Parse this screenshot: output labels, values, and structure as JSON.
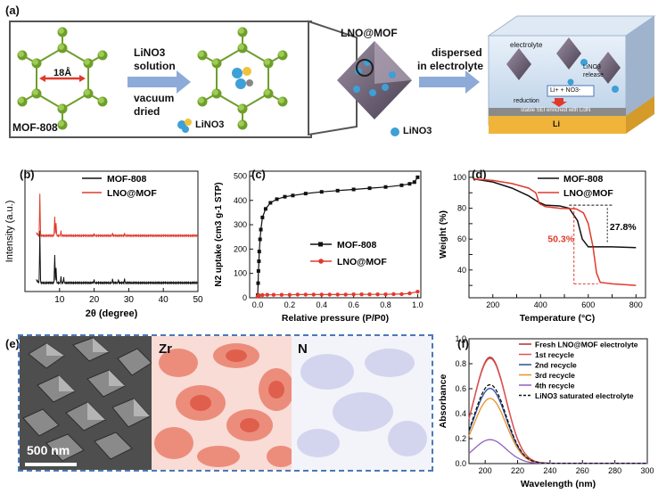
{
  "panel_a": {
    "label": "(a)",
    "mof_label": "MOF-808",
    "pore_size": "18Å",
    "step1_line1": "LiNO3",
    "step1_line2": "solution",
    "step2_line1": "vacuum",
    "step2_line2": "dried",
    "lino3_legend": "LiNO3",
    "lno_mof_title": "LNO@MOF",
    "lino3_legend2": "LiNO3",
    "dispersed_line1": "dispersed",
    "dispersed_line2": "in electrolyte",
    "battery": {
      "electrolyte": "electrolyte",
      "release_line1": "LiNO3",
      "release_line2": "release",
      "ions": "Li+ + NO3-",
      "reduction": "reduction",
      "sei": "stable SEI enriched with Li3N",
      "li": "Li"
    },
    "colors": {
      "mof": "#6f9e2c",
      "arrow": "#8eaad8",
      "li_bar": "#f0b43a",
      "blue_ball": "#3da0d6"
    }
  },
  "panel_b": {
    "label": "(b)",
    "chart_data": {
      "type": "line",
      "xlabel": "2θ (degree)",
      "ylabel": "Intensity (a.u.)",
      "xlim": [
        0,
        50
      ],
      "xticks": [
        10,
        20,
        30,
        40,
        50
      ],
      "series": [
        {
          "name": "MOF-808",
          "color": "#111111",
          "peaks": [
            [
              4.3,
              1.0
            ],
            [
              8.6,
              0.55
            ],
            [
              9.0,
              0.28
            ],
            [
              10.4,
              0.12
            ],
            [
              11.2,
              0.1
            ],
            [
              20.0,
              0.06
            ],
            [
              25.3,
              0.07
            ],
            [
              27.0,
              0.06
            ],
            [
              28.8,
              0.08
            ]
          ]
        },
        {
          "name": "LNO@MOF",
          "color": "#e03a2c",
          "peaks": [
            [
              4.3,
              0.85
            ],
            [
              8.6,
              0.4
            ],
            [
              9.0,
              0.25
            ],
            [
              10.4,
              0.1
            ],
            [
              20.0,
              0.04
            ],
            [
              25.3,
              0.05
            ],
            [
              28.8,
              0.05
            ]
          ]
        }
      ]
    }
  },
  "panel_c": {
    "label": "(c)",
    "chart_data": {
      "type": "scatter",
      "xlabel": "Relative pressure (P/P0)",
      "ylabel": "N2 uptake (cm3 g-1 STP)",
      "xlim": [
        -0.05,
        1.02
      ],
      "ylim": [
        0,
        520
      ],
      "xticks": [
        0.0,
        0.2,
        0.4,
        0.6,
        0.8,
        1.0
      ],
      "yticks": [
        0,
        100,
        200,
        300,
        400,
        500
      ],
      "series": [
        {
          "name": "MOF-808",
          "color": "#111111",
          "x": [
            0.0,
            0.003,
            0.005,
            0.008,
            0.01,
            0.015,
            0.02,
            0.03,
            0.05,
            0.08,
            0.12,
            0.17,
            0.22,
            0.3,
            0.4,
            0.5,
            0.6,
            0.7,
            0.8,
            0.9,
            0.95,
            0.98,
            1.0
          ],
          "y": [
            10,
            60,
            110,
            150,
            190,
            240,
            280,
            330,
            365,
            390,
            405,
            415,
            420,
            428,
            435,
            440,
            445,
            450,
            455,
            462,
            468,
            475,
            495
          ]
        },
        {
          "name": "LNO@MOF",
          "color": "#e03a2c",
          "x": [
            0.0,
            0.003,
            0.01,
            0.03,
            0.06,
            0.1,
            0.15,
            0.2,
            0.25,
            0.3,
            0.35,
            0.4,
            0.45,
            0.5,
            0.55,
            0.6,
            0.65,
            0.7,
            0.75,
            0.8,
            0.85,
            0.9,
            0.95,
            1.0
          ],
          "y": [
            5,
            8,
            10,
            11,
            12,
            12,
            12,
            12,
            13,
            13,
            13,
            13,
            13,
            13,
            13,
            14,
            14,
            14,
            14,
            14,
            15,
            15,
            18,
            25
          ]
        }
      ]
    }
  },
  "panel_d": {
    "label": "(d)",
    "annot_mof": "27.8%",
    "annot_lno": "50.3%",
    "chart_data": {
      "type": "line",
      "xlabel": "Temperature (°C)",
      "ylabel": "Weight (%)",
      "xlim": [
        100,
        840
      ],
      "ylim": [
        22,
        104
      ],
      "xticks": [
        200,
        300,
        400,
        500,
        600,
        700,
        800
      ],
      "yticks": [
        30,
        40,
        50,
        60,
        70,
        80,
        90,
        100
      ],
      "series": [
        {
          "name": "MOF-808",
          "color": "#111111",
          "x": [
            120,
            200,
            280,
            350,
            390,
            420,
            480,
            520,
            555,
            575,
            600,
            620,
            700,
            800
          ],
          "y": [
            99,
            97,
            93,
            88,
            84,
            82,
            81.5,
            80,
            72,
            60,
            55,
            55,
            55,
            54.5
          ]
        },
        {
          "name": "LNO@MOF",
          "color": "#e03a2c",
          "x": [
            120,
            200,
            280,
            350,
            380,
            395,
            420,
            480,
            550,
            580,
            600,
            620,
            635,
            650,
            700,
            800
          ],
          "y": [
            99,
            98,
            96,
            93,
            90,
            83,
            81,
            80,
            79.5,
            77,
            70,
            55,
            38,
            32,
            31,
            30
          ]
        }
      ]
    }
  },
  "panel_e": {
    "label": "(e)",
    "scale_bar": "500 nm",
    "map_zr": "Zr",
    "map_n": "N"
  },
  "panel_f": {
    "label": "(f)",
    "chart_data": {
      "type": "line",
      "xlabel": "Wavelength (nm)",
      "ylabel": "Absorbance",
      "xlim": [
        190,
        300
      ],
      "ylim": [
        0,
        1.0
      ],
      "xticks": [
        200,
        220,
        240,
        260,
        280,
        300
      ],
      "yticks": [
        0.0,
        0.2,
        0.4,
        0.6,
        0.8,
        1.0
      ],
      "series": [
        {
          "name": "Fresh LNO@MOF electrolyte",
          "color": "#b03030",
          "peak": 0.85,
          "dash": false
        },
        {
          "name": "1st recycle",
          "color": "#e05050",
          "peak": 0.84,
          "dash": false
        },
        {
          "name": "2nd recycle",
          "color": "#2a4fa0",
          "peak": 0.6,
          "dash": false
        },
        {
          "name": "3rd recycle",
          "color": "#e8902a",
          "peak": 0.52,
          "dash": false
        },
        {
          "name": "4th recycle",
          "color": "#9060c0",
          "peak": 0.19,
          "dash": false
        },
        {
          "name": "LiNO3 saturated electrolyte",
          "color": "#111111",
          "peak": 0.63,
          "dash": true
        }
      ]
    }
  }
}
